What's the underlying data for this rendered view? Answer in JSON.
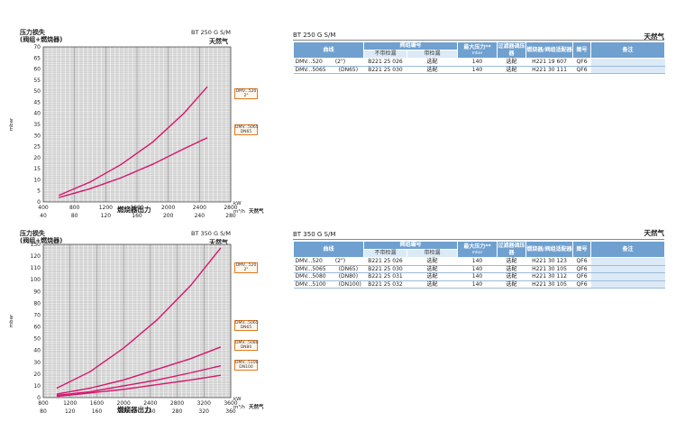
{
  "charts": [
    {
      "id": "bt250",
      "title_line1": "压力损失",
      "title_line2": "(阀组+燃烧器)",
      "model": "BT 250 G S/M",
      "gas": "天然气",
      "y_unit": "mbar",
      "x_unit_kw": "kW",
      "x_unit_m3": "m³/h",
      "x_unit_gas": "天然气",
      "xlabel": "燃烧器出力",
      "chart_data": {
        "type": "line",
        "title": "BT 250 G S/M",
        "ylabel": "mbar",
        "xlabel": "燃烧器出力",
        "ylim": [
          0,
          70
        ],
        "y_ticks": [
          0,
          5,
          10,
          15,
          20,
          25,
          30,
          35,
          40,
          45,
          50,
          55,
          60,
          65,
          70
        ],
        "xlim_kw": [
          400,
          2800
        ],
        "x_ticks_kw": [
          400,
          800,
          1200,
          1600,
          2000,
          2400,
          2800
        ],
        "x_ticks_m3": [
          40,
          80,
          120,
          160,
          200,
          240,
          280
        ],
        "grid": true,
        "series": [
          {
            "name": "DMV..520 2\"",
            "x": [
              600,
              1000,
              1400,
              1800,
              2200,
              2500
            ],
            "y": [
              3,
              9,
              17,
              27,
              40,
              52
            ]
          },
          {
            "name": "DMV..5065 DN65",
            "x": [
              600,
              1000,
              1400,
              1800,
              2200,
              2500
            ],
            "y": [
              2,
              6,
              11,
              17,
              24,
              29
            ]
          }
        ]
      },
      "tags": [
        "DMV...520\n2\"",
        "DMV...5065\nDN65"
      ]
    },
    {
      "id": "bt350",
      "title_line1": "压力损失",
      "title_line2": "(阀组+燃烧器)",
      "model": "BT 350 G S/M",
      "gas": "天然气",
      "y_unit": "mbar",
      "x_unit_kw": "kW",
      "x_unit_m3": "m³/h",
      "x_unit_gas": "天然气",
      "xlabel": "燃烧器出力",
      "chart_data": {
        "type": "line",
        "title": "BT 350 G S/M",
        "ylabel": "mbar",
        "xlabel": "燃烧器出力",
        "ylim": [
          0,
          130
        ],
        "y_ticks": [
          0,
          10,
          20,
          30,
          40,
          50,
          60,
          70,
          80,
          90,
          100,
          110,
          120,
          130
        ],
        "xlim_kw": [
          800,
          3600
        ],
        "x_ticks_kw": [
          800,
          1200,
          1600,
          2000,
          2400,
          2800,
          3200,
          3600
        ],
        "x_ticks_m3": [
          80,
          120,
          160,
          200,
          240,
          280,
          320,
          360
        ],
        "grid": true,
        "series": [
          {
            "name": "DMV..520 2\"",
            "x": [
              1000,
              1500,
              2000,
              2500,
              3000,
              3450
            ],
            "y": [
              8,
              22,
              42,
              66,
              95,
              127
            ]
          },
          {
            "name": "DMV..5065 DN65",
            "x": [
              1000,
              1500,
              2000,
              2500,
              3000,
              3450
            ],
            "y": [
              3,
              8,
              15,
              24,
              33,
              43
            ]
          },
          {
            "name": "DMV..5080 DN80",
            "x": [
              1000,
              1500,
              2000,
              2500,
              3000,
              3450
            ],
            "y": [
              2,
              5,
              10,
              15,
              21,
              27
            ]
          },
          {
            "name": "DMV..5100 DN100",
            "x": [
              1000,
              1500,
              2000,
              2500,
              3000,
              3450
            ],
            "y": [
              1,
              4,
              7,
              11,
              15,
              19
            ]
          }
        ]
      },
      "tags": [
        "DMV...520\n2\"",
        "DMV...5065\nDN65",
        "DMV...5080\nDN80",
        "DMV...5100\nDN100"
      ]
    }
  ],
  "tables": [
    {
      "id": "t250",
      "title": "BT 250 G S/M",
      "gas": "天然气",
      "headers": {
        "curve": "曲线",
        "valve_group": "阀组编号",
        "no_leak": "不带检漏",
        "with_leak": "带检漏",
        "max_pressure": "最大压力**",
        "max_pressure_unit": "mbar",
        "filter": "过滤器调压器",
        "adapter": "燃烧器/阀组适配器",
        "diagram": "图号",
        "note": "备注"
      },
      "rows": [
        {
          "model": "DMV...520",
          "size": "(2\")",
          "code": "B221 25 026",
          "leak": "选配",
          "pressure": "140",
          "filter": "选配",
          "adapter": "H221 19 607",
          "diagram": "QF6",
          "note": ""
        },
        {
          "model": "DMV...5065",
          "size": "(DN65)",
          "code": "B221 25 030",
          "leak": "选配",
          "pressure": "140",
          "filter": "选配",
          "adapter": "H221 30 111",
          "diagram": "QF6",
          "note": ""
        }
      ]
    },
    {
      "id": "t350",
      "title": "BT 350 G S/M",
      "gas": "天然气",
      "headers": {
        "curve": "曲线",
        "valve_group": "阀组编号",
        "no_leak": "不带检漏",
        "with_leak": "带检漏",
        "max_pressure": "最大压力**",
        "max_pressure_unit": "mbar",
        "filter": "过滤器调压器",
        "adapter": "燃烧器/阀组适配器",
        "diagram": "图号",
        "note": "备注"
      },
      "rows": [
        {
          "model": "DMV...520",
          "size": "(2\")",
          "code": "B221 25 026",
          "leak": "选配",
          "pressure": "140",
          "filter": "选配",
          "adapter": "H221 30 123",
          "diagram": "QF6",
          "note": ""
        },
        {
          "model": "DMV...5065",
          "size": "(DN65)",
          "code": "B221 25 030",
          "leak": "选配",
          "pressure": "140",
          "filter": "选配",
          "adapter": "H221 30 105",
          "diagram": "QF6",
          "note": ""
        },
        {
          "model": "DMV...5080",
          "size": "(DN80)",
          "code": "B221 25 031",
          "leak": "选配",
          "pressure": "140",
          "filter": "选配",
          "adapter": "H221 30 112",
          "diagram": "QF6",
          "note": ""
        },
        {
          "model": "DMV...5100",
          "size": "(DN100)",
          "code": "B221 25 032",
          "leak": "选配",
          "pressure": "140",
          "filter": "选配",
          "adapter": "H221 30 105",
          "diagram": "QF6",
          "note": ""
        }
      ]
    }
  ],
  "colors": {
    "curve": "#d6166e",
    "plot_bg": "#d0d0d0",
    "grid": "#ffffff",
    "tag_border": "#e07a20",
    "header": "#6fa0cf",
    "header_light": "#dceaf7"
  }
}
